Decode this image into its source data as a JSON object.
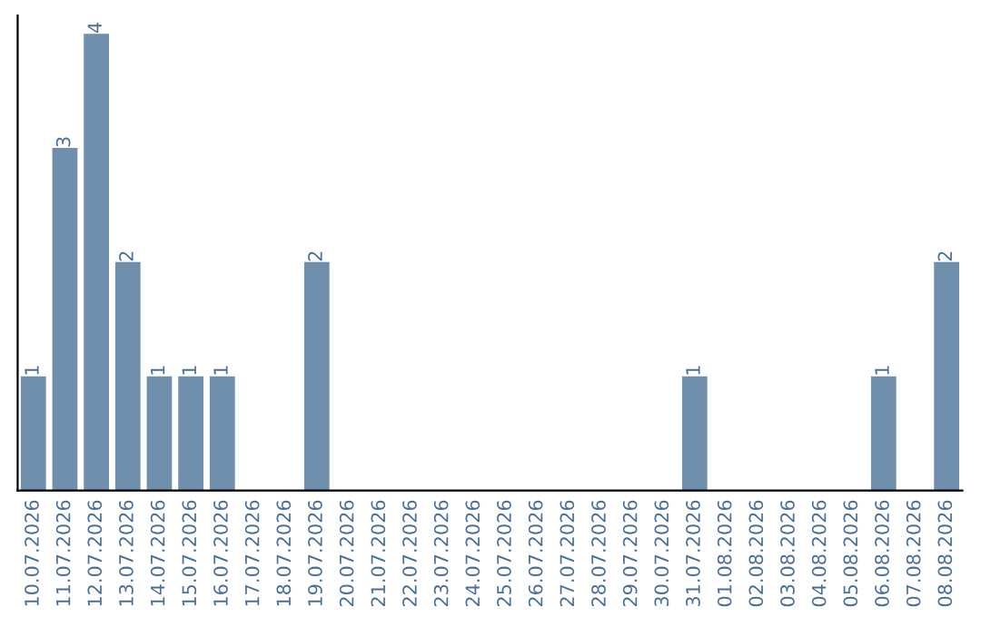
{
  "chart_data": {
    "type": "bar",
    "categories": [
      "10.07.2026",
      "11.07.2026",
      "12.07.2026",
      "13.07.2026",
      "14.07.2026",
      "15.07.2026",
      "16.07.2026",
      "17.07.2026",
      "18.07.2026",
      "19.07.2026",
      "20.07.2026",
      "21.07.2026",
      "22.07.2026",
      "23.07.2026",
      "24.07.2026",
      "25.07.2026",
      "26.07.2026",
      "27.07.2026",
      "28.07.2026",
      "29.07.2026",
      "30.07.2026",
      "31.07.2026",
      "01.08.2026",
      "02.08.2026",
      "03.08.2026",
      "04.08.2026",
      "05.08.2026",
      "06.08.2026",
      "07.08.2026",
      "08.08.2026"
    ],
    "values": [
      1,
      3,
      4,
      2,
      1,
      1,
      1,
      0,
      0,
      2,
      0,
      0,
      0,
      0,
      0,
      0,
      0,
      0,
      0,
      0,
      0,
      1,
      0,
      0,
      0,
      0,
      0,
      1,
      0,
      2
    ],
    "value_labels": [
      "1",
      "3",
      "4",
      "2",
      "1",
      "1",
      "1",
      null,
      null,
      "2",
      null,
      null,
      null,
      null,
      null,
      null,
      null,
      null,
      null,
      null,
      null,
      "1",
      null,
      null,
      null,
      null,
      null,
      "1",
      null,
      "2"
    ],
    "color": "#6f8fad",
    "grid": false,
    "legend": false,
    "tick_labels": "x"
  }
}
